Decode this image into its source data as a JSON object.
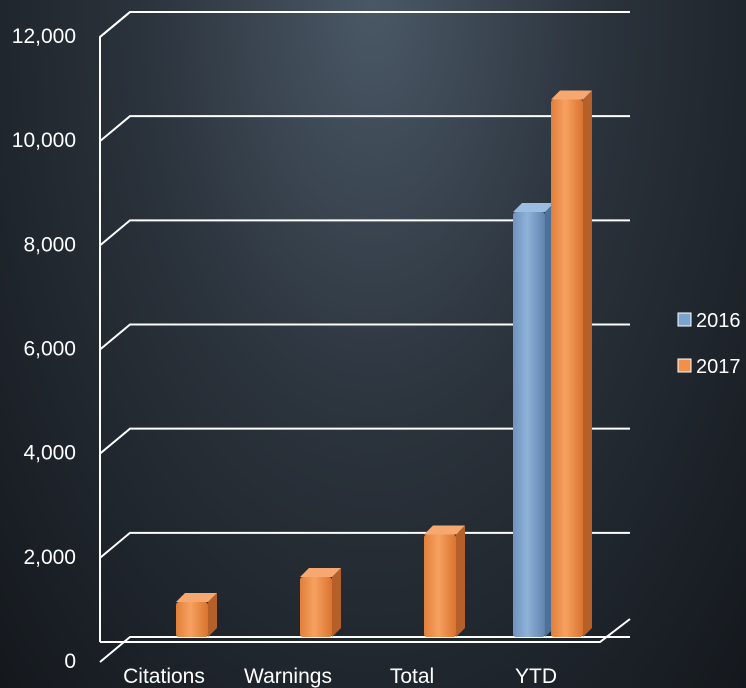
{
  "chart_data": {
    "type": "bar",
    "title": "",
    "xlabel": "",
    "ylabel": "",
    "categories": [
      "Citations",
      "Warnings",
      "Total",
      "YTD"
    ],
    "series": [
      {
        "name": "2016",
        "values": [
          null,
          null,
          null,
          8500
        ],
        "color": "#7ba3cf"
      },
      {
        "name": "2017",
        "values": [
          700,
          1200,
          2050,
          10750
        ],
        "color": "#f0904a"
      }
    ],
    "ylim": [
      0,
      12000
    ],
    "yticks": [
      0,
      2000,
      4000,
      6000,
      8000,
      10000,
      12000
    ],
    "ytick_labels": [
      "0",
      "2,000",
      "4,000",
      "6,000",
      "8,000",
      "10,000",
      "12,000"
    ],
    "grid": true,
    "legend_position": "right",
    "style": "3d"
  }
}
